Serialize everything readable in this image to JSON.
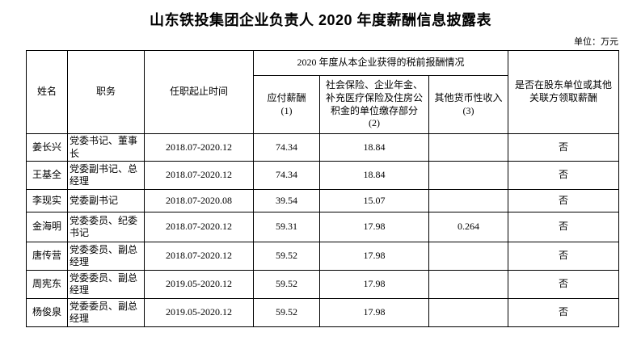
{
  "title": "山东铁投集团企业负责人 2020 年度薪酬信息披露表",
  "unit_label": "单位：万元",
  "table": {
    "header": {
      "name": "姓名",
      "position": "职务",
      "term": "任职起止时间",
      "group": "2020 年度从本企业获得的税前报酬情况",
      "salary": {
        "label": "应付薪酬",
        "sub": "(1)"
      },
      "insurance": {
        "label": "社会保险、企业年金、补充医疗保险及住房公积金的单位缴存部分",
        "sub": "(2)"
      },
      "other": {
        "label": "其他货币性收入",
        "sub": "(3)"
      },
      "related": "是否在股东单位或其他关联方领取薪酬"
    },
    "rows": [
      {
        "name": "姜长兴",
        "position": "党委书记、董事长",
        "term": "2018.07-2020.12",
        "salary": "74.34",
        "insurance": "18.84",
        "other": "",
        "related": "否"
      },
      {
        "name": "王基全",
        "position": "党委副书记、总经理",
        "term": "2018.07-2020.12",
        "salary": "74.34",
        "insurance": "18.84",
        "other": "",
        "related": "否"
      },
      {
        "name": "李现实",
        "position": "党委副书记",
        "term": "2018.07-2020.08",
        "salary": "39.54",
        "insurance": "15.07",
        "other": "",
        "related": "否"
      },
      {
        "name": "金海明",
        "position": "党委委员、纪委书记",
        "term": "2018.07-2020.12",
        "salary": "59.31",
        "insurance": "17.98",
        "other": "0.264",
        "related": "否"
      },
      {
        "name": "唐传营",
        "position": "党委委员、副总经理",
        "term": "2018.07-2020.12",
        "salary": "59.52",
        "insurance": "17.98",
        "other": "",
        "related": "否"
      },
      {
        "name": "周宪东",
        "position": "党委委员、副总经理",
        "term": "2019.05-2020.12",
        "salary": "59.52",
        "insurance": "17.98",
        "other": "",
        "related": "否"
      },
      {
        "name": "杨俊泉",
        "position": "党委委员、副总经理",
        "term": "2019.05-2020.12",
        "salary": "59.52",
        "insurance": "17.98",
        "other": "",
        "related": "否"
      }
    ]
  }
}
